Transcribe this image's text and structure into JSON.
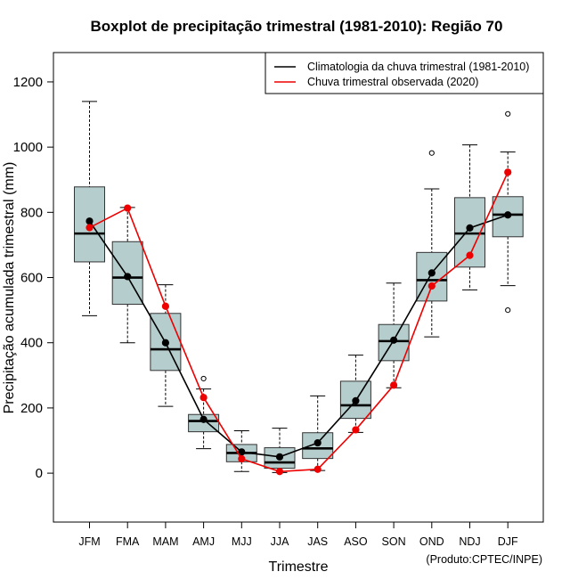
{
  "chart_data": {
    "type": "boxplot",
    "title": "Boxplot de precipitação trimestral (1981-2010): Região 70",
    "xlabel": "Trimestre",
    "ylabel": "Precipitação acumulada trimestral (mm)",
    "credit": "(Produto:CPTEC/INPE)",
    "ylim": [
      -150,
      1290
    ],
    "yticks": [
      0,
      200,
      400,
      600,
      800,
      1000,
      1200
    ],
    "categories": [
      "JFM",
      "FMA",
      "MAM",
      "AMJ",
      "MJJ",
      "JJA",
      "JAS",
      "ASO",
      "SON",
      "OND",
      "NDJ",
      "DJF"
    ],
    "boxes": [
      {
        "min": 483,
        "q1": 648,
        "median": 735,
        "q3": 878,
        "max": 1140,
        "outliers": []
      },
      {
        "min": 400,
        "q1": 518,
        "median": 600,
        "q3": 710,
        "max": 815,
        "outliers": []
      },
      {
        "min": 205,
        "q1": 315,
        "median": 380,
        "q3": 490,
        "max": 578,
        "outliers": []
      },
      {
        "min": 75,
        "q1": 127,
        "median": 160,
        "q3": 180,
        "max": 258,
        "outliers": [
          290
        ]
      },
      {
        "min": 5,
        "q1": 35,
        "median": 62,
        "q3": 88,
        "max": 130,
        "outliers": []
      },
      {
        "min": 2,
        "q1": 15,
        "median": 33,
        "q3": 78,
        "max": 138,
        "outliers": []
      },
      {
        "min": 8,
        "q1": 45,
        "median": 76,
        "q3": 124,
        "max": 237,
        "outliers": []
      },
      {
        "min": 125,
        "q1": 168,
        "median": 208,
        "q3": 282,
        "max": 362,
        "outliers": []
      },
      {
        "min": 262,
        "q1": 345,
        "median": 405,
        "q3": 456,
        "max": 583,
        "outliers": []
      },
      {
        "min": 418,
        "q1": 528,
        "median": 592,
        "q3": 677,
        "max": 872,
        "outliers": [
          982
        ]
      },
      {
        "min": 562,
        "q1": 632,
        "median": 735,
        "q3": 845,
        "max": 1007,
        "outliers": []
      },
      {
        "min": 575,
        "q1": 725,
        "median": 793,
        "q3": 848,
        "max": 985,
        "outliers": [
          1102,
          500
        ]
      }
    ],
    "series": [
      {
        "name": "Climatologia da chuva trimestral (1981-2010)",
        "color": "#000000",
        "values": [
          773,
          603,
          400,
          165,
          65,
          50,
          93,
          222,
          408,
          614,
          752,
          792
        ]
      },
      {
        "name": "Chuva trimestral observada (2020)",
        "color": "#ee0000",
        "values": [
          753,
          813,
          512,
          232,
          44,
          5,
          12,
          133,
          270,
          574,
          668,
          923
        ]
      }
    ],
    "box_fill": "#b6cdcd",
    "legend_position": "top-right"
  }
}
